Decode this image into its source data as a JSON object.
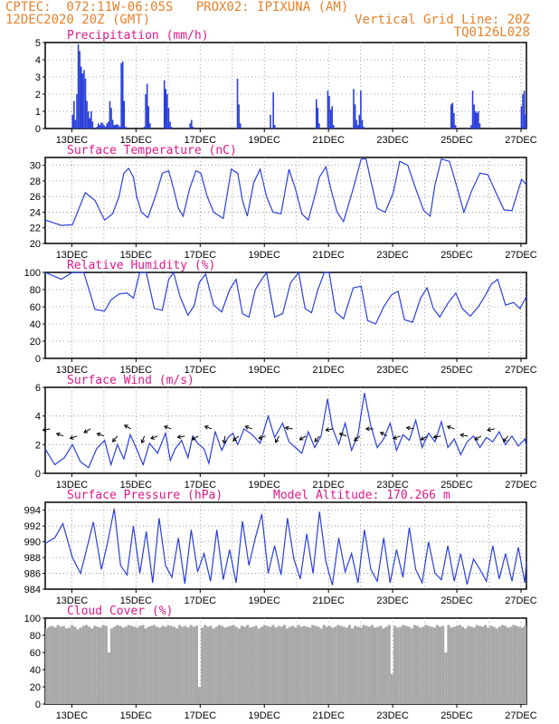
{
  "header": {
    "line1_left": "CPTEC:  072:11W-06:05S   PROX02: IPIXUNA (AM)",
    "line2_left": "12DEC2020 20Z (GMT)",
    "line2_right": "Vertical Grid Line: 20Z",
    "line3_right": "TQ0126L028"
  },
  "colors": {
    "header": "#e8802a",
    "title": "#e0188a",
    "series": "#2a3fd9",
    "cloud": "#a8a8a8"
  },
  "x_axis_labels": [
    "13DEC",
    "15DEC",
    "17DEC",
    "19DEC",
    "21DEC",
    "23DEC",
    "25DEC",
    "27DEC"
  ],
  "chart_data": [
    {
      "type": "bar",
      "title": "Precipitation (mm/h)",
      "ylim": [
        0,
        5
      ],
      "yticks": [
        0,
        1,
        2,
        3,
        4,
        5
      ],
      "x_range_days": [
        12.83,
        27.0
      ],
      "values": [
        0.8,
        1.6,
        0.5,
        2.0,
        4.9,
        4.5,
        3.6,
        3.2,
        3.4,
        2.9,
        1.6,
        1.0,
        0.6,
        1.0,
        0.4,
        0,
        0,
        0.1,
        0.3,
        0.2,
        0.35,
        0.3,
        0.2,
        0.1,
        0.3,
        0.4,
        1.6,
        1.2,
        0.5,
        0.2,
        0.2,
        0.25,
        0.2,
        0.1,
        3.8,
        3.9,
        1.6,
        0.1,
        0,
        0,
        0,
        0,
        0,
        0,
        0,
        0,
        0,
        0,
        0,
        0,
        0.1,
        2.0,
        2.6,
        1.3,
        0.3,
        0,
        0,
        0,
        0,
        0,
        0,
        0,
        0,
        0,
        2.8,
        2.3,
        2.0,
        1.2,
        0.4,
        0.1,
        0,
        0,
        0,
        0,
        0,
        0,
        0,
        0,
        0,
        0,
        0,
        0,
        0.3,
        0.5,
        0.1,
        0,
        0,
        0,
        0,
        0,
        0,
        0,
        0,
        0,
        0,
        0,
        0,
        0,
        0,
        0,
        0,
        0,
        0,
        0,
        0,
        0,
        0,
        0,
        0,
        0,
        0,
        0,
        0,
        0,
        0,
        2.9,
        1.4,
        0.3,
        0,
        0,
        0,
        0,
        0,
        0,
        0,
        0,
        0,
        0,
        0,
        0,
        0,
        0,
        0,
        0,
        0,
        0,
        0,
        0,
        0.8,
        0,
        2.1,
        0.2,
        0,
        0,
        0,
        0,
        0,
        0,
        0,
        0,
        0,
        0,
        0,
        0,
        0,
        0,
        0,
        0,
        0,
        0,
        0,
        0,
        0,
        0,
        0,
        0,
        0,
        0,
        0,
        0,
        1.7,
        1.2,
        0.3,
        0,
        0,
        0,
        0,
        0,
        2.2,
        1.9,
        1.1,
        1.3,
        0.2,
        0,
        0,
        0,
        0,
        0,
        0,
        0,
        0,
        0,
        0,
        0,
        0,
        0,
        2.3,
        1.4,
        0.5,
        0.2,
        0.8,
        2.2,
        0.5,
        0.1,
        0,
        0,
        0,
        0,
        0,
        0,
        0,
        0,
        0,
        0,
        0,
        0,
        0,
        0,
        0,
        0,
        0,
        0,
        0,
        0,
        0,
        0,
        0,
        0,
        0,
        0,
        0,
        0,
        0,
        0,
        0,
        0,
        0,
        0,
        0,
        0,
        0,
        0,
        0,
        0,
        0,
        0,
        0,
        0,
        0,
        0,
        0,
        0,
        0,
        0,
        0,
        0,
        0,
        0,
        0,
        0,
        0,
        0,
        0,
        0,
        1.4,
        1.5,
        0.9,
        0.2,
        0,
        0,
        0,
        0,
        0,
        0,
        0,
        0,
        0,
        0,
        0.2,
        2.2,
        1.4,
        1.0,
        0.9,
        1.0,
        0.3,
        0,
        0,
        0,
        0,
        0,
        0,
        0,
        0,
        0,
        0,
        0,
        0,
        0,
        0,
        0,
        0,
        0,
        0,
        0,
        0,
        0,
        0,
        0,
        0,
        0,
        0,
        0,
        0,
        1.3,
        2.0,
        2.2,
        0.8
      ]
    },
    {
      "type": "line",
      "title": "Surface Temperature (nC)",
      "ylim": [
        20,
        31
      ],
      "yticks": [
        20,
        22,
        24,
        26,
        28,
        30
      ],
      "x_range_days": [
        12.0,
        27.0
      ],
      "x": [
        12.0,
        12.5,
        12.85,
        13.25,
        13.55,
        13.85,
        14.1,
        14.3,
        14.45,
        14.6,
        14.75,
        14.85,
        15.0,
        15.2,
        15.45,
        15.65,
        15.85,
        16.0,
        16.15,
        16.3,
        16.5,
        16.7,
        16.85,
        17.05,
        17.25,
        17.55,
        17.8,
        18.0,
        18.15,
        18.3,
        18.5,
        18.7,
        18.9,
        19.1,
        19.35,
        19.6,
        19.8,
        20.0,
        20.2,
        20.4,
        20.55,
        20.75,
        20.9,
        21.1,
        21.3,
        21.6,
        21.85,
        22.0,
        22.15,
        22.35,
        22.6,
        22.85,
        23.05,
        23.3,
        23.55,
        23.8,
        24.0,
        24.15,
        24.35,
        24.6,
        24.85,
        25.05,
        25.3,
        25.55,
        25.8,
        26.05,
        26.3,
        26.55,
        26.85,
        27.0
      ],
      "y": [
        23.0,
        22.3,
        22.4,
        26.5,
        25.5,
        23.0,
        23.8,
        26.0,
        29.0,
        29.6,
        28.5,
        26.0,
        24.0,
        23.3,
        26.2,
        29.0,
        29.3,
        27.0,
        24.5,
        23.5,
        27.0,
        29.3,
        29.0,
        26.0,
        24.0,
        23.2,
        29.5,
        29.0,
        25.5,
        23.5,
        27.8,
        29.5,
        26.0,
        24.0,
        23.8,
        29.5,
        27.0,
        23.8,
        23.0,
        26.0,
        28.5,
        29.8,
        27.0,
        24.0,
        22.8,
        27.0,
        30.8,
        30.8,
        28.0,
        24.5,
        24.0,
        26.5,
        30.5,
        30.0,
        27.0,
        24.2,
        23.5,
        27.5,
        30.8,
        30.5,
        27.0,
        24.0,
        26.8,
        29.0,
        28.8,
        26.5,
        24.3,
        24.2,
        28.2,
        27.5
      ]
    },
    {
      "type": "line",
      "title": "Relative Humidity (%)",
      "ylim": [
        0,
        100
      ],
      "yticks": [
        0,
        20,
        40,
        60,
        80,
        100
      ],
      "x_range_days": [
        12.0,
        27.0
      ],
      "x": [
        12.0,
        12.5,
        12.85,
        13.2,
        13.55,
        13.85,
        14.05,
        14.3,
        14.55,
        14.75,
        14.95,
        15.15,
        15.4,
        15.65,
        15.85,
        16.0,
        16.2,
        16.45,
        16.65,
        16.8,
        17.0,
        17.25,
        17.5,
        17.75,
        17.95,
        18.15,
        18.35,
        18.55,
        18.75,
        18.9,
        19.15,
        19.4,
        19.65,
        19.9,
        20.1,
        20.3,
        20.5,
        20.7,
        20.85,
        21.05,
        21.3,
        21.6,
        21.85,
        22.05,
        22.3,
        22.55,
        22.8,
        23.0,
        23.2,
        23.45,
        23.7,
        23.9,
        24.1,
        24.3,
        24.55,
        24.8,
        25.0,
        25.25,
        25.5,
        25.7,
        25.9,
        26.1,
        26.35,
        26.6,
        26.8,
        27.0
      ],
      "y": [
        100,
        92,
        100,
        100,
        57,
        55,
        68,
        75,
        76,
        70,
        100,
        100,
        58,
        56,
        92,
        100,
        72,
        50,
        62,
        88,
        98,
        62,
        54,
        80,
        92,
        52,
        48,
        80,
        92,
        100,
        48,
        52,
        88,
        100,
        58,
        53,
        80,
        100,
        100,
        54,
        46,
        82,
        84,
        44,
        40,
        60,
        74,
        78,
        45,
        42,
        70,
        82,
        58,
        48,
        64,
        76,
        58,
        49,
        60,
        72,
        86,
        92,
        62,
        65,
        58,
        72
      ]
    },
    {
      "type": "line",
      "title": "Surface Wind (m/s)",
      "ylim": [
        0,
        6
      ],
      "yticks": [
        0,
        2,
        4,
        6
      ],
      "x_range_days": [
        12.0,
        27.0
      ],
      "x": [
        12.0,
        12.3,
        12.6,
        12.85,
        13.1,
        13.35,
        13.6,
        13.85,
        14.05,
        14.25,
        14.45,
        14.65,
        14.85,
        15.05,
        15.25,
        15.5,
        15.75,
        15.9,
        16.05,
        16.25,
        16.45,
        16.6,
        16.75,
        16.95,
        17.1,
        17.3,
        17.5,
        17.7,
        17.85,
        18.0,
        18.2,
        18.45,
        18.7,
        18.95,
        19.15,
        19.4,
        19.6,
        19.8,
        20.0,
        20.2,
        20.4,
        20.6,
        20.8,
        20.95,
        21.15,
        21.35,
        21.55,
        21.75,
        21.95,
        22.15,
        22.35,
        22.55,
        22.75,
        22.95,
        23.15,
        23.35,
        23.55,
        23.75,
        23.95,
        24.15,
        24.35,
        24.55,
        24.75,
        24.95,
        25.15,
        25.35,
        25.55,
        25.75,
        25.95,
        26.15,
        26.35,
        26.55,
        26.75,
        26.95,
        27.0
      ],
      "y": [
        1.7,
        0.6,
        1.1,
        2.0,
        0.8,
        0.4,
        1.7,
        2.3,
        0.6,
        2.0,
        1.0,
        2.7,
        1.7,
        0.6,
        2.1,
        1.4,
        2.8,
        0.9,
        1.7,
        2.3,
        1.1,
        2.6,
        2.1,
        1.7,
        0.7,
        2.9,
        1.6,
        2.5,
        2.8,
        2.0,
        3.1,
        2.7,
        2.1,
        4.0,
        2.5,
        3.5,
        2.2,
        1.8,
        1.4,
        2.9,
        1.8,
        2.6,
        5.2,
        3.2,
        2.0,
        3.5,
        1.6,
        2.7,
        5.6,
        3.3,
        1.8,
        2.4,
        3.5,
        1.6,
        2.7,
        2.3,
        3.7,
        1.8,
        2.8,
        2.2,
        3.6,
        1.8,
        2.4,
        1.3,
        2.2,
        2.6,
        1.8,
        2.5,
        2.2,
        2.9,
        2.0,
        2.6,
        1.9,
        2.4,
        1.9
      ]
    },
    {
      "type": "line",
      "title": "Surface Pressure (hPa)",
      "subtitle": "Model Altitude: 170.266 m",
      "ylim": [
        984,
        995
      ],
      "yticks": [
        984,
        986,
        988,
        990,
        992,
        994
      ],
      "x_range_days": [
        12.0,
        27.0
      ],
      "x": [
        12.0,
        12.3,
        12.55,
        12.85,
        13.1,
        13.3,
        13.5,
        13.75,
        13.95,
        14.15,
        14.35,
        14.55,
        14.75,
        14.95,
        15.15,
        15.35,
        15.55,
        15.75,
        15.95,
        16.15,
        16.35,
        16.55,
        16.75,
        16.95,
        17.15,
        17.35,
        17.55,
        17.75,
        17.95,
        18.15,
        18.35,
        18.55,
        18.75,
        18.95,
        19.15,
        19.35,
        19.55,
        19.75,
        19.95,
        20.15,
        20.35,
        20.55,
        20.75,
        20.95,
        21.15,
        21.35,
        21.55,
        21.75,
        21.95,
        22.15,
        22.35,
        22.55,
        22.75,
        22.95,
        23.15,
        23.35,
        23.55,
        23.75,
        23.95,
        24.15,
        24.35,
        24.55,
        24.75,
        24.95,
        25.15,
        25.35,
        25.55,
        25.75,
        25.95,
        26.15,
        26.35,
        26.55,
        26.75,
        26.95,
        27.0
      ],
      "y": [
        989.8,
        990.5,
        992.3,
        988.0,
        986.0,
        989.2,
        992.5,
        986.5,
        990.0,
        994.2,
        987.0,
        985.8,
        992.0,
        986.0,
        991.3,
        984.8,
        993.0,
        987.0,
        985.5,
        990.5,
        984.7,
        991.5,
        986.2,
        988.5,
        985.0,
        991.5,
        985.2,
        989.0,
        984.8,
        992.6,
        987.0,
        990.5,
        993.5,
        986.0,
        989.5,
        985.8,
        993.0,
        987.8,
        985.3,
        991.0,
        986.0,
        993.8,
        987.5,
        984.5,
        990.5,
        986.2,
        988.5,
        984.8,
        991.5,
        986.5,
        985.0,
        990.5,
        984.8,
        989.0,
        985.5,
        991.8,
        986.5,
        984.8,
        990.0,
        986.0,
        985.2,
        989.5,
        985.0,
        988.5,
        984.6,
        987.8,
        986.5,
        985.0,
        989.5,
        985.3,
        988.5,
        985.0,
        989.3,
        984.8,
        987.5
      ]
    },
    {
      "type": "bar",
      "title": "Cloud Cover (%)",
      "ylim": [
        0,
        100
      ],
      "yticks": [
        0,
        20,
        40,
        60,
        80,
        100
      ],
      "x_range_days": [
        12.0,
        27.0
      ],
      "values": [
        88,
        90,
        91,
        89,
        92,
        90,
        91,
        88,
        89,
        92,
        90,
        87,
        89,
        91,
        92,
        90,
        88,
        91,
        90,
        89,
        92,
        91,
        60,
        88,
        90,
        92,
        91,
        89,
        90,
        92,
        91,
        90,
        89,
        91,
        92,
        88,
        90,
        91,
        92,
        90,
        89,
        91,
        90,
        92,
        91,
        90,
        88,
        92,
        90,
        91,
        89,
        92,
        90,
        91,
        20,
        89,
        92,
        90,
        91,
        88,
        90,
        92,
        91,
        89,
        90,
        91,
        92,
        90,
        88,
        91,
        90,
        92,
        89,
        90,
        91,
        88,
        90,
        92,
        91,
        90,
        92,
        89,
        91,
        90,
        92,
        88,
        90,
        91,
        89,
        92,
        90,
        91,
        90,
        89,
        92,
        91,
        90,
        88,
        92,
        90,
        91,
        89,
        90,
        92,
        91,
        90,
        89,
        92,
        88,
        91,
        90,
        89,
        92,
        91,
        90,
        92,
        89,
        90,
        91,
        88,
        90,
        92,
        35,
        91,
        89,
        90,
        92,
        91,
        90,
        88,
        92,
        91,
        89,
        90,
        92,
        91,
        90,
        89,
        92,
        90,
        91,
        60,
        92,
        89,
        90,
        91,
        92,
        90,
        88,
        91,
        90,
        89,
        92,
        91,
        90,
        92,
        89,
        91,
        90,
        88,
        90,
        92,
        91,
        89,
        90,
        92,
        91,
        90,
        89,
        91
      ]
    }
  ]
}
